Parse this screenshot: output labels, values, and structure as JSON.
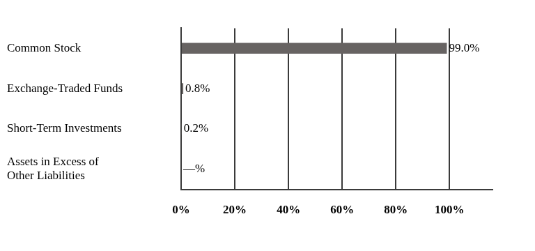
{
  "chart_data": {
    "type": "bar",
    "orientation": "horizontal",
    "categories": [
      "Common Stock",
      "Exchange-Traded Funds",
      "Short-Term Investments",
      [
        "Assets in Excess of",
        "Other Liabilities"
      ]
    ],
    "values": [
      99.0,
      0.8,
      0.2,
      0
    ],
    "value_labels": [
      "99.0%",
      "0.8%",
      "0.2%",
      "—%"
    ],
    "data_labels": true,
    "color": "#676362",
    "xlim": [
      0,
      116
    ],
    "xticks": [
      {
        "value": 0,
        "label": "0%"
      },
      {
        "value": 20,
        "label": "20%"
      },
      {
        "value": 40,
        "label": "40%"
      },
      {
        "value": 60,
        "label": "60%"
      },
      {
        "value": 80,
        "label": "80%"
      },
      {
        "value": 100,
        "label": "100%"
      }
    ],
    "grid": true
  }
}
